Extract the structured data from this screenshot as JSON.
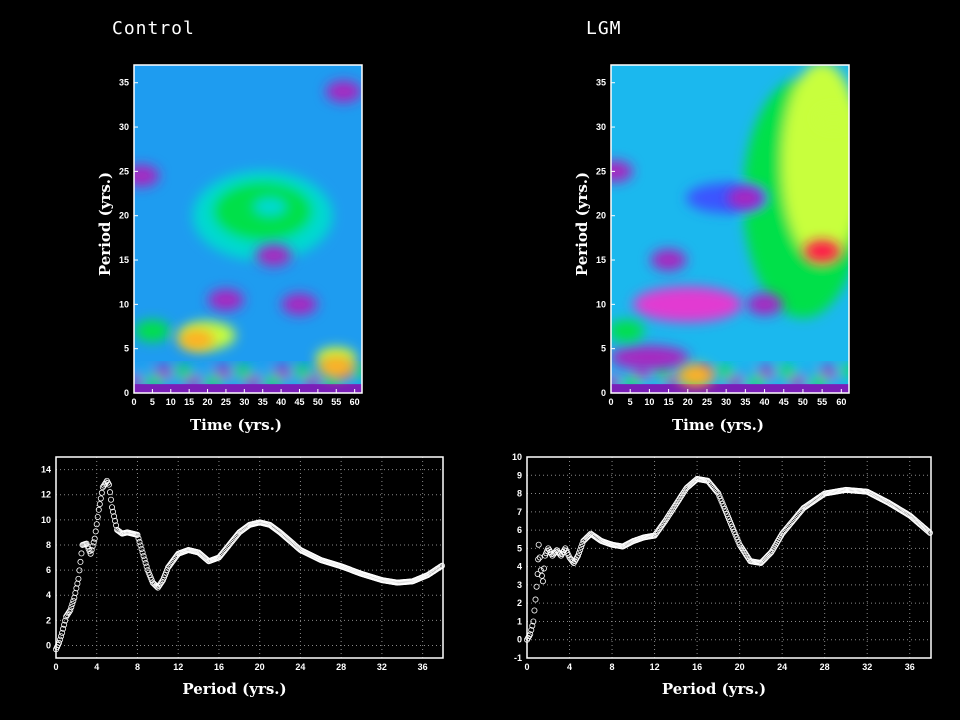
{
  "panels": {
    "left_title": "Control",
    "right_title": "LGM"
  },
  "chart_data": [
    {
      "id": "control-wavelet",
      "type": "heatmap",
      "title": "Control",
      "xlabel": "Time (yrs.)",
      "ylabel": "Period (yrs.)",
      "xlim": [
        0,
        62
      ],
      "ylim": [
        0,
        37
      ],
      "xticks": [
        0,
        5,
        10,
        15,
        20,
        25,
        30,
        35,
        40,
        45,
        50,
        55,
        60
      ],
      "yticks": [
        0,
        5,
        10,
        15,
        20,
        25,
        30,
        35
      ],
      "features": [
        {
          "t": 17,
          "p": 6,
          "level": 8
        },
        {
          "t": 5,
          "p": 7,
          "level": 6
        },
        {
          "t": 55,
          "p": 3,
          "level": 8
        },
        {
          "t": 37,
          "p": 21,
          "level": 5
        },
        {
          "t": 38,
          "p": 15.5,
          "level": 1
        },
        {
          "t": 2,
          "p": 24.5,
          "level": 1
        },
        {
          "t": 57,
          "p": 34,
          "level": 1
        },
        {
          "t": 25,
          "p": 10.5,
          "level": 1
        },
        {
          "t": 45,
          "p": 10,
          "level": 1
        }
      ]
    },
    {
      "id": "lgm-wavelet",
      "type": "heatmap",
      "title": "LGM",
      "xlabel": "Time (yrs.)",
      "ylabel": "Period (yrs.)",
      "xlim": [
        0,
        62
      ],
      "ylim": [
        0,
        37
      ],
      "xticks": [
        0,
        5,
        10,
        15,
        20,
        25,
        30,
        35,
        40,
        45,
        50,
        55,
        60
      ],
      "yticks": [
        0,
        5,
        10,
        15,
        20,
        25,
        30,
        35
      ],
      "features": [
        {
          "t": 55,
          "p": 16,
          "level": 9
        },
        {
          "t": 58,
          "p": 31,
          "level": 7
        },
        {
          "t": 4,
          "p": 7,
          "level": 6
        },
        {
          "t": 22,
          "p": 2,
          "level": 8
        },
        {
          "t": 35,
          "p": 22,
          "level": 1
        },
        {
          "t": 15,
          "p": 15,
          "level": 1
        },
        {
          "t": 1,
          "p": 25,
          "level": 1
        },
        {
          "t": 40,
          "p": 10,
          "level": 1
        }
      ]
    },
    {
      "id": "control-spectrum",
      "type": "scatter",
      "xlabel": "Period (yrs.)",
      "ylabel": "",
      "xlim": [
        0,
        38
      ],
      "ylim": [
        -1,
        15
      ],
      "xticks": [
        0,
        4,
        8,
        12,
        16,
        20,
        24,
        28,
        32,
        36
      ],
      "yticks": [
        0,
        2,
        4,
        6,
        8,
        10,
        12,
        14
      ],
      "x": [
        0,
        0.3,
        0.6,
        1,
        1.4,
        1.8,
        2.2,
        2.6,
        3,
        3.4,
        3.8,
        4.2,
        4.6,
        5,
        5.2,
        5.5,
        6,
        6.5,
        7,
        8,
        9,
        9.5,
        10,
        10.5,
        11,
        12,
        13,
        14,
        15,
        16,
        17,
        18,
        19,
        20,
        21,
        22,
        24,
        26,
        28,
        30,
        32,
        33.5,
        35,
        36.5,
        38
      ],
      "y": [
        -0.3,
        0.2,
        1,
        2.3,
        2.8,
        3.8,
        5.3,
        8,
        8.1,
        7.3,
        8.5,
        10.8,
        12.6,
        13.1,
        12.8,
        11,
        9.2,
        8.9,
        9,
        8.8,
        6,
        5,
        4.6,
        5.2,
        6.2,
        7.3,
        7.6,
        7.4,
        6.7,
        7,
        8,
        9,
        9.6,
        9.8,
        9.6,
        9,
        7.6,
        6.8,
        6.3,
        5.7,
        5.2,
        5,
        5.1,
        5.6,
        6.4
      ]
    },
    {
      "id": "lgm-spectrum",
      "type": "scatter",
      "xlabel": "Period (yrs.)",
      "ylabel": "",
      "xlim": [
        0,
        38
      ],
      "ylim": [
        -1,
        10
      ],
      "xticks": [
        0,
        4,
        8,
        12,
        16,
        20,
        24,
        28,
        32,
        36
      ],
      "yticks": [
        -1,
        0,
        1,
        2,
        3,
        4,
        5,
        6,
        7,
        8,
        9,
        10
      ],
      "x": [
        0,
        0.3,
        0.6,
        0.8,
        1.0,
        1.1,
        1.3,
        1.5,
        1.7,
        2,
        2.4,
        2.8,
        3.2,
        3.6,
        4,
        4.4,
        4.8,
        5.3,
        6,
        7,
        8,
        9,
        10,
        11,
        12,
        13,
        14,
        15,
        16,
        17,
        18,
        19,
        20,
        21,
        22,
        23,
        24,
        26,
        28,
        30,
        32,
        34,
        36,
        38
      ],
      "y": [
        0,
        0.3,
        1,
        2.2,
        3.6,
        5.2,
        3.8,
        3.2,
        4.6,
        5,
        4.6,
        4.9,
        4.6,
        5,
        4.5,
        4.2,
        4.6,
        5.4,
        5.8,
        5.4,
        5.2,
        5.1,
        5.4,
        5.6,
        5.7,
        6.5,
        7.4,
        8.3,
        8.8,
        8.7,
        8,
        6.6,
        5.2,
        4.3,
        4.2,
        4.8,
        5.8,
        7.2,
        8,
        8.2,
        8.1,
        7.5,
        6.8,
        5.8
      ]
    }
  ]
}
